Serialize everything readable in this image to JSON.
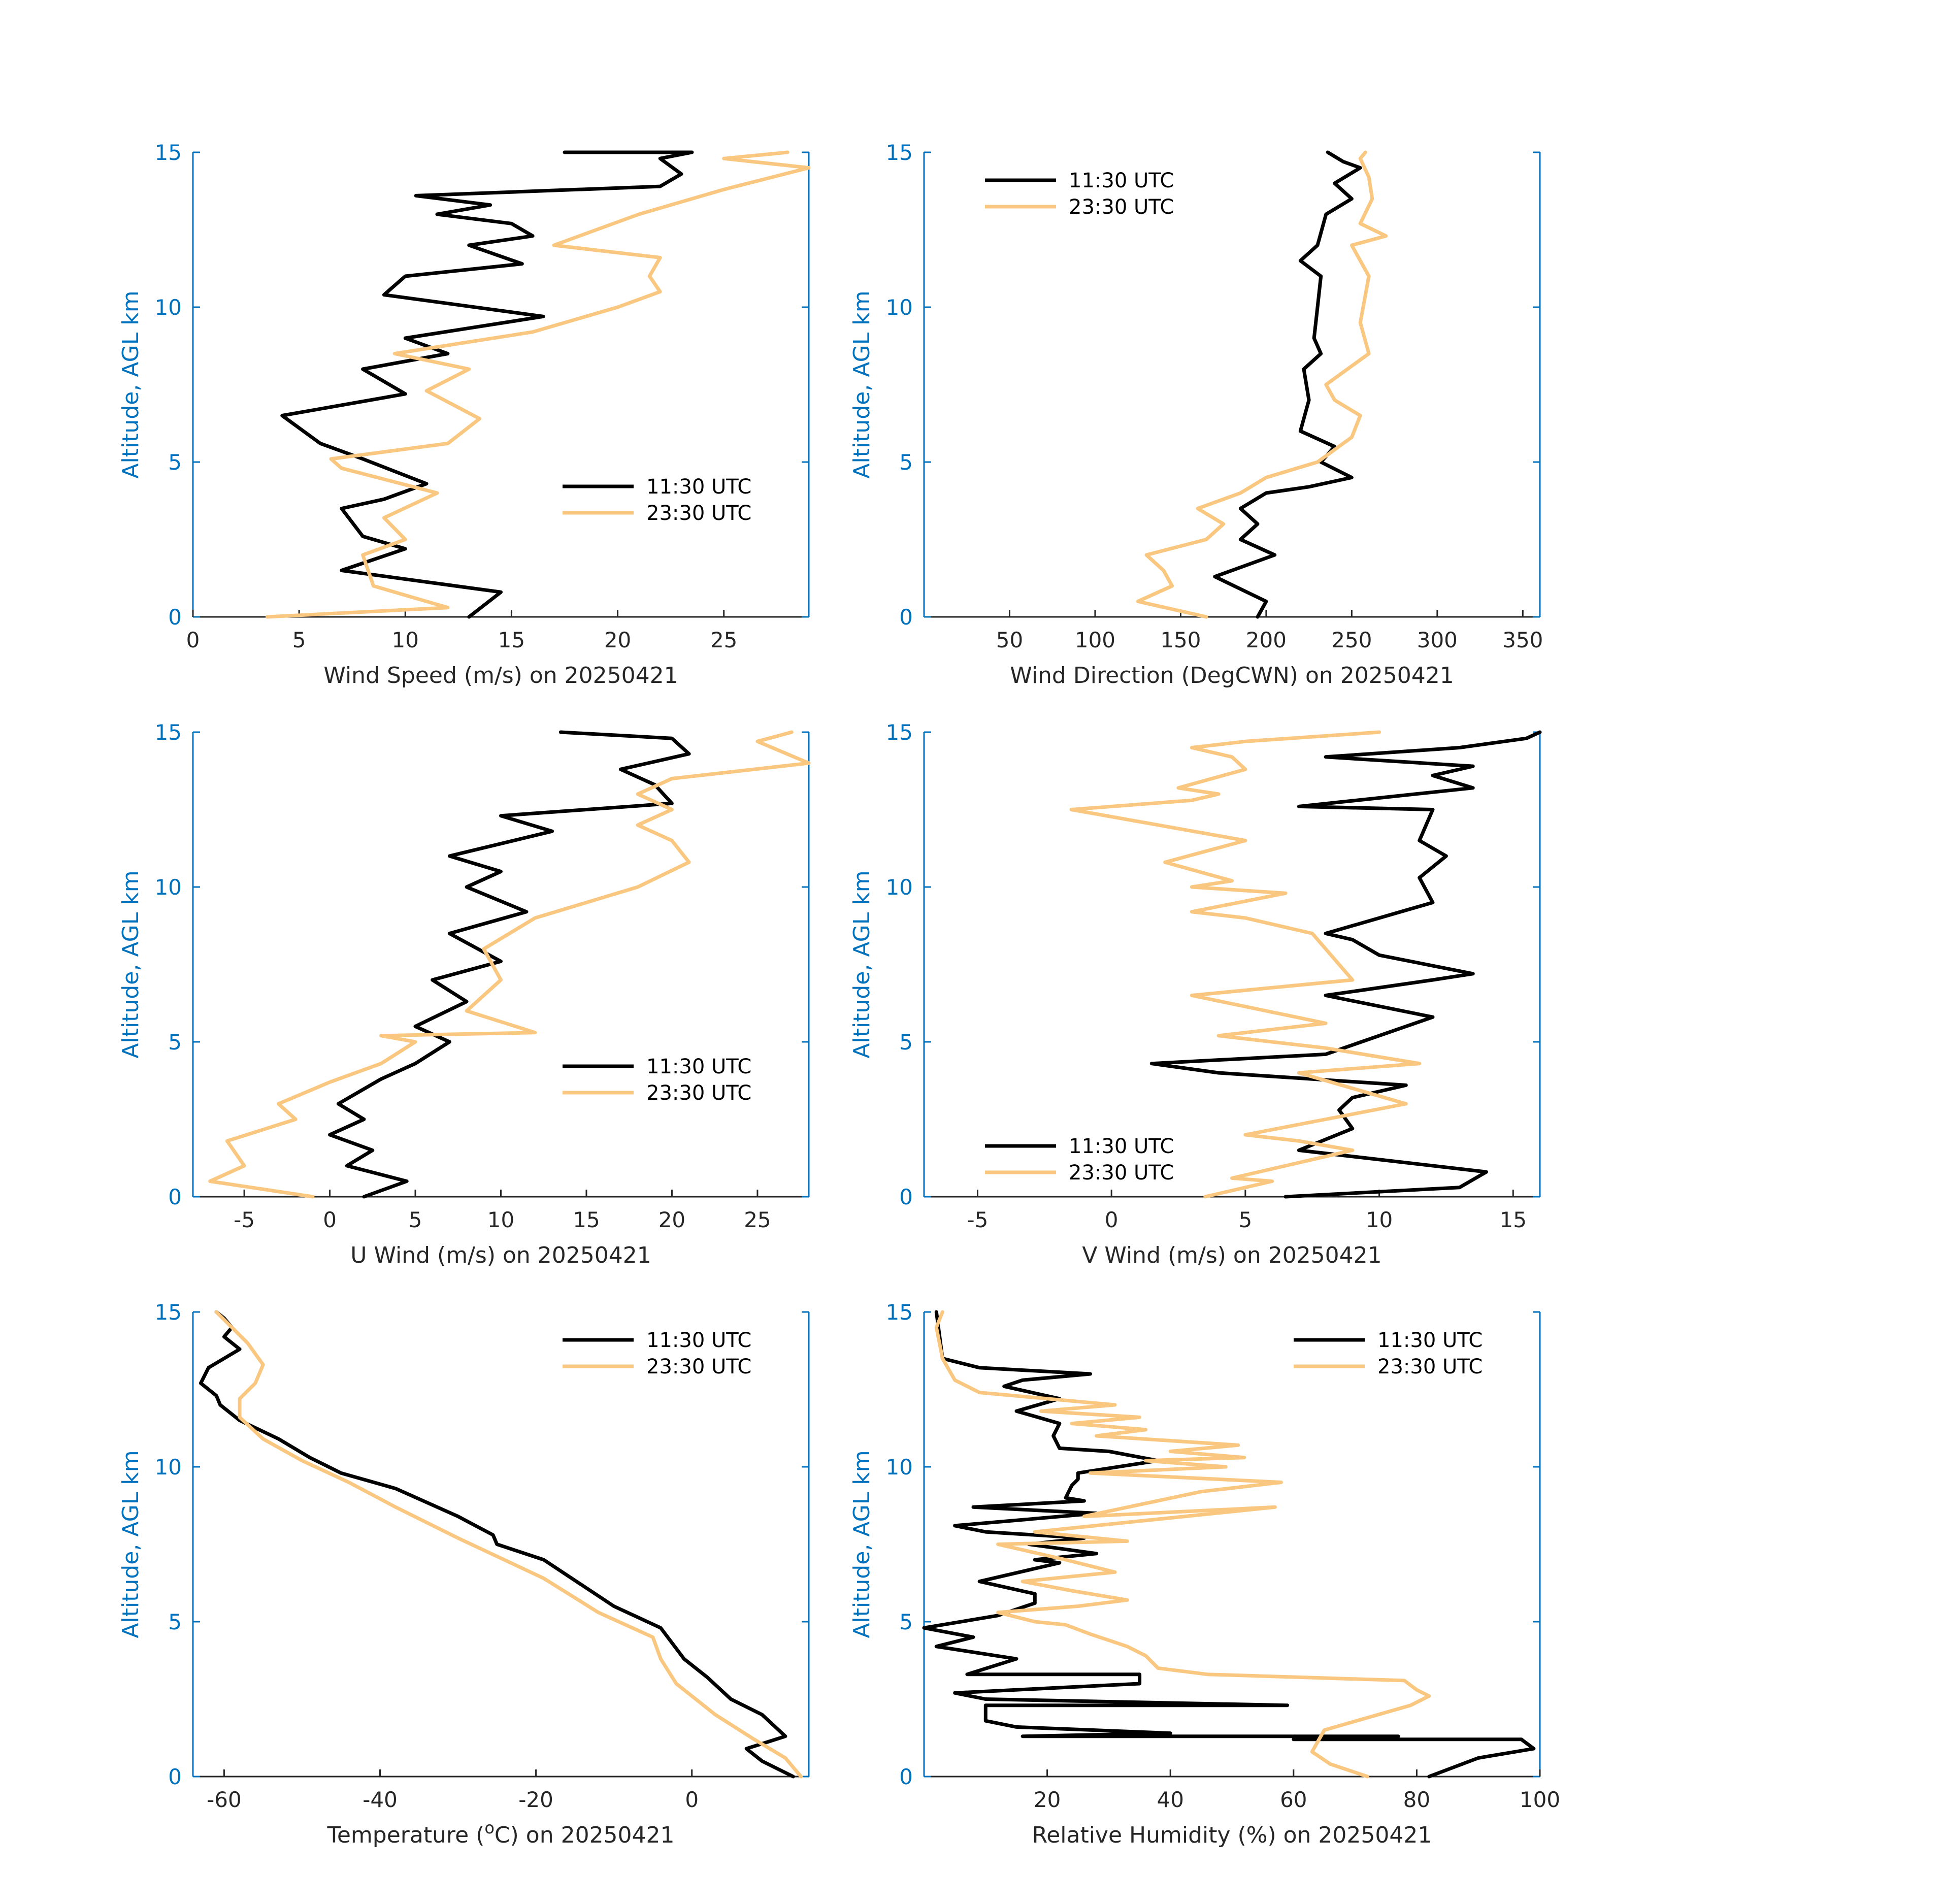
{
  "colors": {
    "series_0": "#000000",
    "series_1": "#F9C77F",
    "axis_y": "#0072BD",
    "axis_x": "#262626"
  },
  "chart_data": [
    {
      "type": "line",
      "id": "wind-speed",
      "xlabel": "Wind Speed (m/s) on 20250421",
      "ylabel": "Altitude, AGL km",
      "xlim": [
        0,
        29
      ],
      "ylim": [
        0,
        15
      ],
      "xticks": [
        0,
        5,
        10,
        15,
        20,
        25
      ],
      "yticks": [
        0,
        5,
        10,
        15
      ],
      "legend": "lower-right",
      "series": [
        {
          "name": "11:30 UTC",
          "x": [
            13,
            14.5,
            7,
            10,
            8,
            7,
            9,
            11,
            8,
            6,
            4.2,
            10,
            8,
            12,
            10,
            16.5,
            9,
            10,
            15.5,
            13,
            16,
            15,
            11.5,
            14,
            10.5,
            22,
            23,
            22,
            23.5,
            17.5
          ],
          "y": [
            0,
            0.8,
            1.5,
            2.2,
            2.6,
            3.5,
            3.8,
            4.3,
            5.1,
            5.6,
            6.5,
            7.2,
            8.0,
            8.5,
            9.0,
            9.7,
            10.4,
            11.0,
            11.4,
            12.0,
            12.3,
            12.7,
            13.0,
            13.3,
            13.6,
            13.9,
            14.3,
            14.8,
            15.0,
            15.0
          ]
        },
        {
          "name": "23:30 UTC",
          "x": [
            3.5,
            12,
            8.5,
            8,
            10,
            9,
            11.5,
            7,
            6.5,
            12,
            13.5,
            11,
            13,
            9.5,
            16,
            20,
            22,
            21.5,
            22,
            17,
            19,
            21,
            25,
            29,
            25,
            28
          ],
          "y": [
            0,
            0.3,
            1.0,
            2.0,
            2.5,
            3.2,
            4.0,
            4.8,
            5.1,
            5.6,
            6.4,
            7.3,
            8.0,
            8.5,
            9.2,
            10.0,
            10.5,
            11.0,
            11.6,
            12.0,
            12.5,
            13.0,
            13.8,
            14.5,
            14.8,
            15.0
          ]
        }
      ]
    },
    {
      "type": "line",
      "id": "wind-direction",
      "xlabel": "Wind Direction (DegCWN) on 20250421",
      "ylabel": "Altitude, AGL km",
      "xlim": [
        0,
        360
      ],
      "ylim": [
        0,
        15
      ],
      "xticks": [
        50,
        100,
        150,
        200,
        250,
        300,
        350
      ],
      "yticks": [
        0,
        5,
        10,
        15
      ],
      "legend": "top-left",
      "series": [
        {
          "name": "11:30 UTC",
          "x": [
            195,
            200,
            170,
            205,
            185,
            195,
            185,
            200,
            225,
            250,
            232,
            240,
            220,
            225,
            222,
            232,
            228,
            230,
            232,
            220,
            230,
            235,
            250,
            240,
            255,
            245,
            236
          ],
          "y": [
            0,
            0.5,
            1.3,
            2.0,
            2.5,
            3.0,
            3.5,
            4.0,
            4.2,
            4.5,
            5.0,
            5.5,
            6.0,
            7.0,
            8.0,
            8.5,
            9.0,
            10.0,
            11.0,
            11.5,
            12.0,
            13.0,
            13.5,
            14.0,
            14.5,
            14.7,
            15.0
          ]
        },
        {
          "name": "23:30 UTC",
          "x": [
            165,
            125,
            145,
            140,
            130,
            165,
            175,
            160,
            185,
            200,
            230,
            250,
            255,
            240,
            235,
            260,
            255,
            260,
            250,
            270,
            255,
            262,
            260,
            255,
            258
          ],
          "y": [
            0,
            0.5,
            1.0,
            1.5,
            2.0,
            2.5,
            3.0,
            3.5,
            4.0,
            4.5,
            5.0,
            5.8,
            6.5,
            7.0,
            7.5,
            8.5,
            9.5,
            11.0,
            12.0,
            12.3,
            12.7,
            13.5,
            14.2,
            14.8,
            15.0
          ]
        }
      ]
    },
    {
      "type": "line",
      "id": "u-wind",
      "xlabel": "U Wind (m/s) on 20250421",
      "ylabel": "Altitude, AGL km",
      "xlim": [
        -8,
        28
      ],
      "ylim": [
        0,
        15
      ],
      "xticks": [
        -5,
        0,
        5,
        10,
        15,
        20,
        25
      ],
      "yticks": [
        0,
        5,
        10,
        15
      ],
      "legend": "lower-right",
      "series": [
        {
          "name": "11:30 UTC",
          "x": [
            2,
            4.5,
            1,
            2.5,
            0,
            2,
            0.5,
            3,
            5,
            7,
            5,
            8,
            6,
            10,
            7,
            11.5,
            8,
            10,
            7,
            13,
            10,
            20,
            19,
            17,
            21,
            20,
            13.5
          ],
          "y": [
            0,
            0.5,
            1.0,
            1.5,
            2.0,
            2.5,
            3.0,
            3.8,
            4.3,
            5.0,
            5.5,
            6.3,
            7.0,
            7.6,
            8.5,
            9.2,
            10.0,
            10.5,
            11.0,
            11.8,
            12.3,
            12.7,
            13.3,
            13.8,
            14.3,
            14.8,
            15.0
          ]
        },
        {
          "name": "23:30 UTC",
          "x": [
            -1,
            -7,
            -5,
            -6,
            -2,
            -3,
            0,
            3,
            5,
            3,
            12,
            8,
            10,
            9,
            12,
            18,
            21,
            20,
            18,
            20,
            18,
            20,
            28,
            25,
            27
          ],
          "y": [
            0,
            0.5,
            1.0,
            1.8,
            2.5,
            3.0,
            3.7,
            4.3,
            5.0,
            5.2,
            5.3,
            6.0,
            7.0,
            8.0,
            9.0,
            10.0,
            10.8,
            11.5,
            12.0,
            12.5,
            13.0,
            13.5,
            14.0,
            14.7,
            15.0
          ]
        }
      ]
    },
    {
      "type": "line",
      "id": "v-wind",
      "xlabel": "V Wind (m/s) on 20250421",
      "ylabel": "Altitude, AGL km",
      "xlim": [
        -7,
        16
      ],
      "ylim": [
        0,
        15
      ],
      "xticks": [
        -5,
        0,
        5,
        10,
        15
      ],
      "yticks": [
        0,
        5,
        10,
        15
      ],
      "legend": "lower-left",
      "series": [
        {
          "name": "11:30 UTC",
          "x": [
            6.5,
            13,
            14,
            7,
            9,
            8.5,
            9,
            11,
            4,
            1.5,
            8,
            10,
            12,
            8,
            12,
            13.5,
            10,
            9,
            8,
            12,
            11.5,
            12.5,
            11.5,
            12,
            7,
            13.5,
            12,
            13.5,
            8,
            13,
            15.5,
            16
          ],
          "y": [
            0,
            0.3,
            0.8,
            1.5,
            2.2,
            2.8,
            3.2,
            3.6,
            4.0,
            4.3,
            4.6,
            5.2,
            5.8,
            6.5,
            7.0,
            7.2,
            7.8,
            8.3,
            8.5,
            9.5,
            10.3,
            11.0,
            11.5,
            12.5,
            12.6,
            13.2,
            13.6,
            13.9,
            14.2,
            14.5,
            14.8,
            15.0
          ]
        },
        {
          "name": "23:30 UTC",
          "x": [
            3.5,
            6,
            4.5,
            9,
            7,
            5,
            8,
            11,
            9,
            7,
            11.5,
            8,
            4,
            8,
            3,
            9,
            8,
            7.5,
            5,
            3,
            6.5,
            3,
            4.5,
            2,
            5,
            -1.5,
            3,
            4,
            2.5,
            5,
            4.5,
            3,
            5,
            10
          ],
          "y": [
            0,
            0.5,
            0.6,
            1.5,
            1.8,
            2.0,
            2.5,
            3.0,
            3.5,
            4.0,
            4.3,
            4.8,
            5.2,
            5.6,
            6.5,
            7.0,
            8.0,
            8.5,
            9.0,
            9.2,
            9.8,
            10.0,
            10.2,
            10.8,
            11.5,
            12.5,
            12.8,
            13.0,
            13.2,
            13.8,
            14.2,
            14.5,
            14.7,
            15.0
          ]
        }
      ]
    },
    {
      "type": "line",
      "id": "temperature",
      "xlabel_prefix": "Temperature (",
      "xlabel_sup": "o",
      "xlabel_suffix": "C) on 20250421",
      "ylabel": "Altitude, AGL km",
      "xlim": [
        -64,
        15
      ],
      "ylim": [
        0,
        15
      ],
      "xticks": [
        -60,
        -40,
        -20,
        0
      ],
      "yticks": [
        0,
        5,
        10,
        15
      ],
      "legend": "top-right",
      "series": [
        {
          "name": "11:30 UTC",
          "x": [
            13,
            9,
            7,
            12,
            9,
            5,
            2,
            -1,
            -4,
            -10,
            -19,
            -25,
            -25.5,
            -30,
            -38,
            -45,
            -49,
            -53,
            -58,
            -60.5,
            -61,
            -63,
            -62,
            -60,
            -58,
            -60,
            -59,
            -60,
            -61
          ],
          "y": [
            0,
            0.5,
            0.9,
            1.3,
            2.0,
            2.5,
            3.2,
            3.8,
            4.8,
            5.5,
            7.0,
            7.5,
            7.8,
            8.4,
            9.3,
            9.8,
            10.3,
            10.9,
            11.5,
            12.0,
            12.3,
            12.7,
            13.2,
            13.5,
            13.8,
            14.2,
            14.5,
            14.8,
            15.0
          ]
        },
        {
          "name": "23:30 UTC",
          "x": [
            14,
            12,
            8,
            3,
            -2,
            -4,
            -5,
            -12,
            -19,
            -30,
            -38,
            -44,
            -50,
            -55,
            -58,
            -58,
            -56,
            -55,
            -57,
            -59,
            -61
          ],
          "y": [
            0,
            0.6,
            1.2,
            2.0,
            3.0,
            3.8,
            4.5,
            5.3,
            6.4,
            7.7,
            8.7,
            9.5,
            10.2,
            10.9,
            11.6,
            12.2,
            12.7,
            13.3,
            14.0,
            14.5,
            15.0
          ]
        }
      ]
    },
    {
      "type": "line",
      "id": "relative-humidity",
      "xlabel": "Relative Humidity (%) on 20250421",
      "ylabel": "Altitude, AGL km",
      "xlim": [
        0,
        100
      ],
      "ylim": [
        0,
        15
      ],
      "xticks": [
        20,
        40,
        60,
        80,
        100
      ],
      "yticks": [
        0,
        5,
        10,
        15
      ],
      "legend": "top-right",
      "series": [
        {
          "name": "11:30 UTC",
          "x": [
            82,
            90,
            99,
            97,
            60,
            77,
            16,
            40,
            15,
            10,
            10,
            59,
            10,
            5,
            35,
            35,
            7,
            15,
            2,
            8,
            0,
            12,
            18,
            18,
            9,
            22,
            18,
            28,
            17,
            26,
            10,
            5,
            28,
            8,
            26,
            23,
            24,
            25,
            25,
            38,
            30,
            22,
            21,
            22,
            15,
            22,
            13,
            16,
            27,
            9,
            3,
            2
          ],
          "y": [
            0,
            0.6,
            0.9,
            1.2,
            1.2,
            1.3,
            1.3,
            1.4,
            1.6,
            1.8,
            2.3,
            2.3,
            2.5,
            2.7,
            3.0,
            3.3,
            3.3,
            3.8,
            4.2,
            4.5,
            4.8,
            5.2,
            5.6,
            5.9,
            6.3,
            6.9,
            7.0,
            7.2,
            7.5,
            7.7,
            7.9,
            8.1,
            8.5,
            8.7,
            8.9,
            9.0,
            9.4,
            9.6,
            9.8,
            10.2,
            10.5,
            10.6,
            11.0,
            11.4,
            11.8,
            12.2,
            12.6,
            12.8,
            13.0,
            13.2,
            13.5,
            15.0
          ]
        },
        {
          "name": "23:30 UTC",
          "x": [
            72,
            66,
            63,
            65,
            79,
            82,
            80,
            78,
            46,
            38,
            36,
            33,
            30,
            27,
            23,
            18,
            12,
            25,
            33,
            24,
            16,
            31,
            23,
            12,
            33,
            18,
            57,
            26,
            45,
            58,
            27,
            49,
            36,
            52,
            40,
            51,
            28,
            36,
            24,
            35,
            19,
            31,
            9,
            5,
            3,
            2,
            3
          ],
          "y": [
            0,
            0.4,
            0.8,
            1.5,
            2.3,
            2.6,
            2.8,
            3.1,
            3.3,
            3.5,
            3.9,
            4.2,
            4.4,
            4.6,
            4.9,
            5.0,
            5.3,
            5.5,
            5.7,
            6.0,
            6.3,
            6.6,
            7.0,
            7.5,
            7.6,
            7.9,
            8.7,
            8.4,
            9.2,
            9.5,
            9.8,
            10.0,
            10.2,
            10.3,
            10.5,
            10.7,
            11.0,
            11.2,
            11.4,
            11.6,
            11.8,
            12.0,
            12.4,
            12.8,
            13.5,
            14.5,
            15.0
          ]
        }
      ]
    }
  ]
}
